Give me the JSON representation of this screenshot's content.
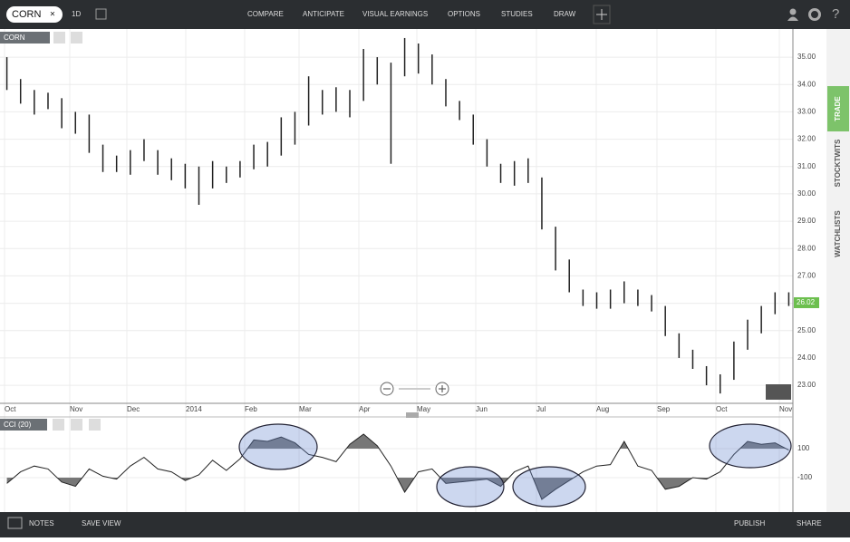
{
  "toolbar": {
    "symbol": "CORN",
    "close": "×",
    "interval": "1D",
    "menus": [
      "COMPARE",
      "ANTICIPATE",
      "VISUAL EARNINGS",
      "OPTIONS",
      "STUDIES",
      "DRAW"
    ]
  },
  "chart": {
    "label": "CORN",
    "ylim": [
      22.34,
      36.03
    ],
    "yticks": [
      {
        "value": 35,
        "label": "35.00"
      },
      {
        "value": 34,
        "label": "34.00"
      },
      {
        "value": 33,
        "label": "33.00"
      },
      {
        "value": 32,
        "label": "32.00"
      },
      {
        "value": 31,
        "label": "31.00"
      },
      {
        "value": 30,
        "label": "30.00"
      },
      {
        "value": 29,
        "label": "29.00"
      },
      {
        "value": 28,
        "label": "28.00"
      },
      {
        "value": 27,
        "label": "27.00"
      },
      {
        "value": 26,
        "label": "26.00"
      },
      {
        "value": 25,
        "label": "25.00"
      },
      {
        "value": 24,
        "label": "24.00"
      },
      {
        "value": 23,
        "label": "23.00"
      }
    ],
    "last": {
      "value": 26.02,
      "label": "26.02"
    },
    "x_labels": [
      "Oct",
      "Nov",
      "Dec",
      "2014",
      "Feb",
      "Mar",
      "Apr",
      "May",
      "Jun",
      "Jul",
      "Aug",
      "Sep",
      "Oct",
      "Nov"
    ],
    "lows": [
      33.8,
      33.3,
      32.9,
      33.1,
      32.4,
      32.2,
      31.5,
      30.8,
      30.8,
      30.7,
      31.2,
      30.7,
      30.5,
      30.2,
      29.6,
      30.2,
      30.4,
      30.6,
      30.9,
      31.0,
      31.4,
      31.8,
      32.5,
      32.9,
      33.0,
      32.8,
      33.4,
      34.0,
      31.1,
      34.3,
      34.4,
      34.0,
      33.2,
      32.7,
      31.8,
      31.0,
      30.4,
      30.3,
      30.4,
      28.7,
      27.2,
      26.4,
      25.9,
      25.8,
      25.8,
      26.0,
      25.9,
      25.7,
      24.8,
      24.0,
      23.6,
      23.0,
      22.7,
      23.2,
      24.3,
      24.9,
      25.6,
      25.9
    ],
    "highs": [
      35.0,
      34.2,
      33.8,
      33.7,
      33.5,
      33.0,
      32.9,
      31.8,
      31.4,
      31.6,
      32.0,
      31.6,
      31.3,
      31.1,
      31.0,
      31.2,
      31.0,
      31.2,
      31.8,
      31.9,
      32.8,
      33.0,
      34.3,
      33.8,
      33.9,
      33.8,
      35.3,
      35.0,
      34.8,
      35.7,
      35.5,
      35.1,
      34.2,
      33.4,
      32.9,
      32.0,
      31.1,
      31.2,
      31.3,
      30.6,
      28.8,
      27.6,
      26.5,
      26.4,
      26.5,
      26.8,
      26.5,
      26.3,
      25.9,
      24.9,
      24.3,
      23.7,
      23.4,
      24.6,
      25.4,
      25.9,
      26.4,
      26.4
    ]
  },
  "indicator": {
    "label": "CCI (20)",
    "ylim": [
      -337.5,
      318.75
    ],
    "yticks": [
      100,
      -100
    ],
    "values": [
      -140,
      -60,
      -20,
      -40,
      -130,
      -160,
      -40,
      -90,
      -110,
      -20,
      40,
      -40,
      -60,
      -120,
      -80,
      20,
      -50,
      30,
      160,
      150,
      180,
      140,
      60,
      40,
      10,
      130,
      200,
      120,
      -20,
      -200,
      -60,
      -40,
      -140,
      -130,
      -120,
      -110,
      -160,
      -60,
      -20,
      -250,
      -180,
      -120,
      -60,
      -20,
      -10,
      150,
      -20,
      -50,
      -180,
      -160,
      -100,
      -110,
      -60,
      60,
      150,
      130,
      140,
      90
    ]
  },
  "side_tabs": [
    "TRADE",
    "STOCKTWITS",
    "WATCHLISTS"
  ],
  "footer": {
    "notes": "NOTES",
    "save": "SAVE VIEW",
    "publish": "PUBLISH",
    "share": "SHARE"
  }
}
